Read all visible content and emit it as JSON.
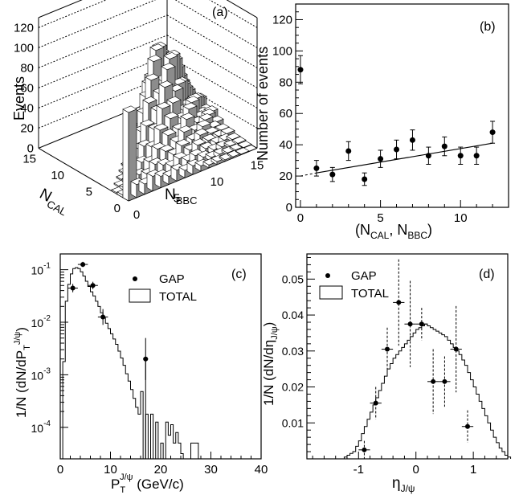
{
  "chart_data": [
    {
      "panel": "(a)",
      "type": "bar",
      "subtype": "3d-lego-histogram",
      "zlabel": "Events",
      "xlabel_main": "N",
      "xlabel_sub": "CAL",
      "ylabel_main": "N",
      "ylabel_sub": "BBC",
      "z_ticks": [
        "0",
        "20",
        "40",
        "60",
        "80",
        "100",
        "120"
      ],
      "x_ticks": [
        "15",
        "10",
        "5",
        "0"
      ],
      "y_ticks": [
        "0",
        "5",
        "10",
        "15"
      ],
      "xlim": [
        0,
        16
      ],
      "ylim": [
        0,
        16
      ],
      "zlim": [
        0,
        130
      ]
    },
    {
      "panel": "(b)",
      "type": "scatter",
      "xlabel": "(N",
      "xlabel_sub1": "CAL",
      "xlabel_mid": ", N",
      "xlabel_sub2": "BBC",
      "xlabel_end": ")",
      "ylabel": "Number of events",
      "xlim": [
        -0.3,
        13
      ],
      "ylim": [
        0,
        130
      ],
      "x_ticks": [
        "0",
        "5",
        "10"
      ],
      "y_ticks": [
        "0",
        "20",
        "40",
        "60",
        "80",
        "100",
        "120"
      ],
      "x": [
        0,
        1,
        2,
        3,
        4,
        5,
        6,
        7,
        8,
        9,
        10,
        11,
        12
      ],
      "y": [
        88,
        25,
        21,
        36,
        18,
        31,
        37,
        43,
        33,
        39,
        33,
        33,
        48
      ],
      "err": [
        9,
        5,
        4.5,
        6,
        4,
        5.5,
        6,
        6.5,
        5.5,
        6,
        5.5,
        5.5,
        7
      ],
      "fit": {
        "x": [
          1,
          12
        ],
        "y": [
          22,
          41
        ]
      },
      "fit_dashed": {
        "x": [
          0,
          1
        ],
        "y": [
          20,
          22
        ]
      }
    },
    {
      "panel": "(c)",
      "type": "line",
      "scale": "log",
      "ylabel": "1/N (dN/dP",
      "ylabel_sub": "T",
      "ylabel_sup": "J/ψ",
      "ylabel_end": ")",
      "xlabel": "P",
      "xlabel_sub": "T",
      "xlabel_sup": "J/ψ",
      "xlabel_end": " (GeV/c)",
      "xlim": [
        0,
        40
      ],
      "ylim_log10": [
        -4.6,
        -0.7
      ],
      "x_ticks": [
        "0",
        "10",
        "20",
        "30",
        "40"
      ],
      "y_ticks": [
        {
          "base": "10",
          "exp": "-1"
        },
        {
          "base": "10",
          "exp": "-2"
        },
        {
          "base": "10",
          "exp": "-3"
        },
        {
          "base": "10",
          "exp": "-4"
        }
      ],
      "legend": [
        "GAP",
        "TOTAL"
      ],
      "hist_log10": [
        -4.6,
        -2.75,
        -1.6,
        -1.28,
        -1.08,
        -0.98,
        -0.96,
        -0.98,
        -1.04,
        -1.12,
        -1.22,
        -1.32,
        -1.42,
        -1.5,
        -1.6,
        -1.7,
        -1.82,
        -1.92,
        -2.02,
        -2.12,
        -2.22,
        -2.32,
        -2.42,
        -2.55,
        -2.68,
        -2.82,
        -2.98,
        -3.12,
        -3.28,
        -3.45,
        -3.62,
        -3.75,
        -3.32,
        -4.6,
        -3.75,
        -4.6,
        -3.75,
        -4.6,
        -3.9,
        -4.6,
        -4.3,
        -4.6,
        -3.9,
        -4.15,
        -3.95,
        -4.3,
        -4.1,
        -4.3,
        -4.5,
        -4.6,
        -4.6,
        -4.6,
        -4.3,
        -4.3,
        -4.3,
        -4.6
      ],
      "hist_bin_width": 0.5,
      "gap_points": [
        {
          "x": 2.5,
          "y_log10": -1.35,
          "xerr": 1,
          "yerr": 0.08
        },
        {
          "x": 4.5,
          "y_log10": -0.9,
          "xerr": 1,
          "yerr": 0.05
        },
        {
          "x": 6.5,
          "y_log10": -1.3,
          "xerr": 1,
          "yerr": 0.07
        },
        {
          "x": 8.5,
          "y_log10": -1.9,
          "xerr": 1,
          "yerr": 0.15
        },
        {
          "x": 17,
          "y_log10": -2.7,
          "xerr": 0.5,
          "yerr": 0.4
        }
      ],
      "vline_x": 17
    },
    {
      "panel": "(d)",
      "type": "line",
      "ylabel": "1/N (dN/dη",
      "ylabel_sub": "J/ψ",
      "ylabel_end": ")",
      "xlabel": "η",
      "xlabel_sub": "J/ψ",
      "xlim": [
        -1.9,
        1.6
      ],
      "ylim": [
        0,
        0.057
      ],
      "x_ticks": [
        "-1",
        "0",
        "1"
      ],
      "y_ticks": [
        "0.01",
        "0.02",
        "0.03",
        "0.04",
        "0.05"
      ],
      "legend": [
        "GAP",
        "TOTAL"
      ],
      "hist_x0": -1.3,
      "hist_bin_width": 0.05,
      "hist": [
        0.0,
        0.0005,
        0.001,
        0.0015,
        0.002,
        0.0035,
        0.005,
        0.007,
        0.009,
        0.011,
        0.013,
        0.015,
        0.017,
        0.019,
        0.021,
        0.023,
        0.025,
        0.0265,
        0.028,
        0.029,
        0.03,
        0.031,
        0.032,
        0.033,
        0.034,
        0.035,
        0.036,
        0.0365,
        0.037,
        0.0375,
        0.037,
        0.0365,
        0.036,
        0.0355,
        0.035,
        0.0345,
        0.034,
        0.033,
        0.032,
        0.031,
        0.03,
        0.029,
        0.0275,
        0.026,
        0.024,
        0.022,
        0.02,
        0.018,
        0.016,
        0.014,
        0.012,
        0.01,
        0.008,
        0.006,
        0.0045,
        0.003,
        0.002,
        0.001,
        0.0005
      ],
      "gap_points": [
        {
          "x": -0.9,
          "y": 0.0025,
          "xerr": 0.1,
          "yerr": 0.0025
        },
        {
          "x": -0.7,
          "y": 0.0155,
          "xerr": 0.1,
          "yerr": 0.0045
        },
        {
          "x": -0.5,
          "y": 0.0305,
          "xerr": 0.1,
          "yerr": 0.006
        },
        {
          "x": -0.3,
          "y": 0.0435,
          "xerr": 0.1,
          "yerr": 0.012
        },
        {
          "x": -0.1,
          "y": 0.0375,
          "xerr": 0.1,
          "yerr": 0.012
        },
        {
          "x": 0.1,
          "y": 0.0375,
          "xerr": 0.1,
          "yerr": 0.0045
        },
        {
          "x": 0.3,
          "y": 0.0215,
          "xerr": 0.1,
          "yerr": 0.009
        },
        {
          "x": 0.5,
          "y": 0.0215,
          "xerr": 0.1,
          "yerr": 0.007
        },
        {
          "x": 0.7,
          "y": 0.0305,
          "xerr": 0.1,
          "yerr": 0.012
        },
        {
          "x": 0.9,
          "y": 0.009,
          "xerr": 0.1,
          "yerr": 0.0045
        }
      ]
    }
  ]
}
